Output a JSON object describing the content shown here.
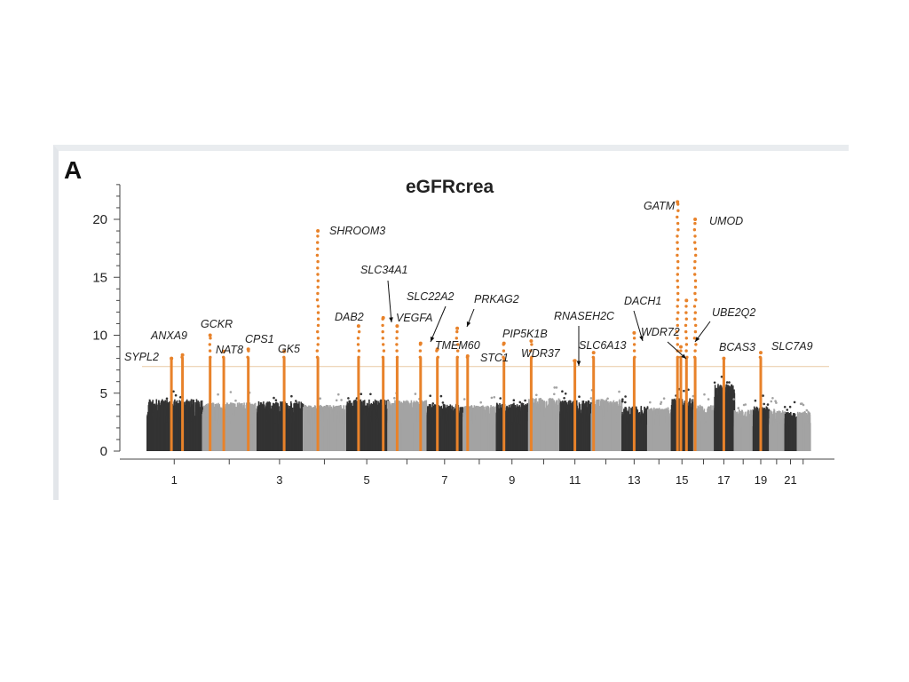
{
  "panel_letter": "A",
  "chart_data": {
    "type": "scatter",
    "subtype": "manhattan",
    "title": "eGFRcrea",
    "xlabel": "",
    "ylabel": "",
    "ylim": [
      0,
      23
    ],
    "y_ticks": [
      0,
      5,
      10,
      15,
      20
    ],
    "x_tick_labels": [
      "1",
      "3",
      "5",
      "7",
      "9",
      "11",
      "13",
      "15",
      "17",
      "19",
      "21"
    ],
    "significance_threshold": 7.3,
    "grid": false,
    "colors": {
      "odd_chromosome": "#333333",
      "even_chromosome": "#a3a3a3",
      "highlight": "#e8822a",
      "threshold_line": "#e9c9a3"
    },
    "chromosomes": [
      {
        "chr": 1,
        "baseline_max": 4.5
      },
      {
        "chr": 2,
        "baseline_max": 4.2
      },
      {
        "chr": 3,
        "baseline_max": 4.3
      },
      {
        "chr": 4,
        "baseline_max": 4.0
      },
      {
        "chr": 5,
        "baseline_max": 4.5
      },
      {
        "chr": 6,
        "baseline_max": 4.4
      },
      {
        "chr": 7,
        "baseline_max": 4.1
      },
      {
        "chr": 8,
        "baseline_max": 4.0
      },
      {
        "chr": 9,
        "baseline_max": 4.2
      },
      {
        "chr": 10,
        "baseline_max": 4.6
      },
      {
        "chr": 11,
        "baseline_max": 4.4
      },
      {
        "chr": 12,
        "baseline_max": 4.5
      },
      {
        "chr": 13,
        "baseline_max": 3.9
      },
      {
        "chr": 14,
        "baseline_max": 3.8
      },
      {
        "chr": 15,
        "baseline_max": 4.6
      },
      {
        "chr": 16,
        "baseline_max": 4.0
      },
      {
        "chr": 17,
        "baseline_max": 5.8
      },
      {
        "chr": 18,
        "baseline_max": 3.6
      },
      {
        "chr": 19,
        "baseline_max": 3.9
      },
      {
        "chr": 20,
        "baseline_max": 3.7
      },
      {
        "chr": 21,
        "baseline_max": 3.4
      },
      {
        "chr": 22,
        "baseline_max": 3.5
      }
    ],
    "loci": [
      {
        "gene": "SYPL2",
        "chr": 1,
        "pos": 0.45,
        "peak": 8.0
      },
      {
        "gene": "ANXA9",
        "chr": 1,
        "pos": 0.65,
        "peak": 8.3
      },
      {
        "gene": "GCKR",
        "chr": 2,
        "pos": 0.15,
        "peak": 10.0
      },
      {
        "gene": "NAT8",
        "chr": 2,
        "pos": 0.4,
        "peak": 8.6
      },
      {
        "gene": "CPS1",
        "chr": 2,
        "pos": 0.85,
        "peak": 8.8
      },
      {
        "gene": "GK5",
        "chr": 3,
        "pos": 0.6,
        "peak": 8.6
      },
      {
        "gene": "SHROOM3",
        "chr": 4,
        "pos": 0.35,
        "peak": 19.0
      },
      {
        "gene": "DAB2",
        "chr": 5,
        "pos": 0.3,
        "peak": 10.8
      },
      {
        "gene": "SLC34A1",
        "chr": 5,
        "pos": 0.9,
        "peak": 11.5
      },
      {
        "gene": "VEGFA",
        "chr": 6,
        "pos": 0.25,
        "peak": 10.8
      },
      {
        "gene": "SLC22A2",
        "chr": 6,
        "pos": 0.85,
        "peak": 9.3
      },
      {
        "gene": "TMEM60",
        "chr": 7,
        "pos": 0.3,
        "peak": 8.8
      },
      {
        "gene": "PRKAG2",
        "chr": 7,
        "pos": 0.85,
        "peak": 10.6
      },
      {
        "gene": "STC1",
        "chr": 8,
        "pos": 0.15,
        "peak": 8.2
      },
      {
        "gene": "PIP5K1B",
        "chr": 9,
        "pos": 0.25,
        "peak": 9.3
      },
      {
        "gene": "WDR37",
        "chr": 10,
        "pos": 0.1,
        "peak": 9.5
      },
      {
        "gene": "RNASEH2C",
        "chr": 11,
        "pos": 0.5,
        "peak": 7.8
      },
      {
        "gene": "SLC6A13",
        "chr": 12,
        "pos": 0.1,
        "peak": 8.5
      },
      {
        "gene": "DACH1",
        "chr": 13,
        "pos": 0.5,
        "peak": 10.2
      },
      {
        "gene": "GATM",
        "chr": 15,
        "pos": 0.3,
        "peak": 21.5
      },
      {
        "gene": "WDR72",
        "chr": 15,
        "pos": 0.45,
        "peak": 9.0
      },
      {
        "gene": "UBE2Q2",
        "chr": 15,
        "pos": 0.7,
        "peak": 13.0
      },
      {
        "gene": "UMOD",
        "chr": 16,
        "pos": 0.1,
        "peak": 20.0
      },
      {
        "gene": "BCAS3",
        "chr": 17,
        "pos": 0.5,
        "peak": 8.0
      },
      {
        "gene": "SLC7A9",
        "chr": 19,
        "pos": 0.5,
        "peak": 8.5
      }
    ]
  }
}
